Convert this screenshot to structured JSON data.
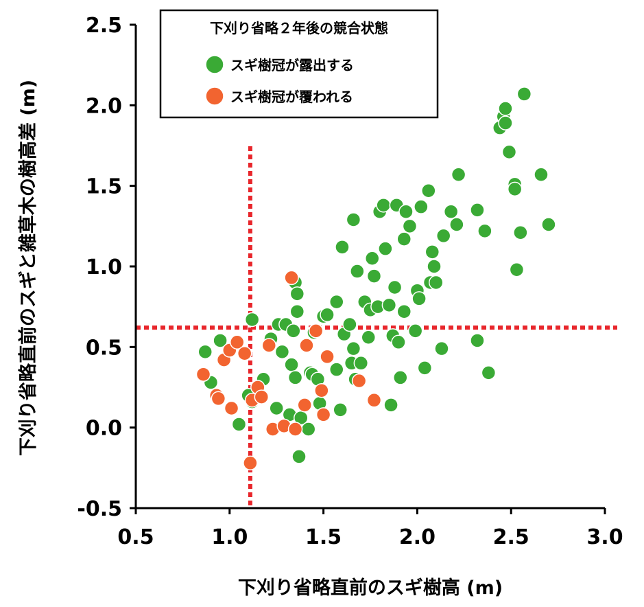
{
  "chart_data": {
    "type": "scatter",
    "xlabel": "下刈り省略直前のスギ樹高 (m)",
    "ylabel": "下刈り省略直前のスギと雑草木の樹高差 (m)",
    "xlim": [
      0.5,
      3.0
    ],
    "ylim": [
      -0.5,
      2.5
    ],
    "xticks": [
      "0.5",
      "1.0",
      "1.5",
      "2.0",
      "2.5",
      "3.0"
    ],
    "yticks": [
      "-0.5",
      "0.0",
      "0.5",
      "1.0",
      "1.5",
      "2.0",
      "2.5"
    ],
    "legend": {
      "title": "下刈り省略２年後の競合状態",
      "placement": "top-left"
    },
    "reference_lines": {
      "x": 1.11,
      "y": 0.62,
      "color": "#e8262b",
      "style": "dotted"
    },
    "series": [
      {
        "name": "スギ樹冠が露出する",
        "color": "#3aaa35",
        "points": [
          [
            0.87,
            0.47
          ],
          [
            0.9,
            0.28
          ],
          [
            0.95,
            0.54
          ],
          [
            1.05,
            0.02
          ],
          [
            1.1,
            0.2
          ],
          [
            1.12,
            0.67
          ],
          [
            1.12,
            0.16
          ],
          [
            1.18,
            0.3
          ],
          [
            1.22,
            0.55
          ],
          [
            1.25,
            0.12
          ],
          [
            1.26,
            0.64
          ],
          [
            1.28,
            0.47
          ],
          [
            1.3,
            0.64
          ],
          [
            1.32,
            0.08
          ],
          [
            1.33,
            0.39
          ],
          [
            1.34,
            0.6
          ],
          [
            1.35,
            0.31
          ],
          [
            1.35,
            0.9
          ],
          [
            1.36,
            0.83
          ],
          [
            1.36,
            0.72
          ],
          [
            1.37,
            -0.18
          ],
          [
            1.38,
            0.06
          ],
          [
            1.42,
            -0.01
          ],
          [
            1.43,
            0.34
          ],
          [
            1.44,
            0.33
          ],
          [
            1.45,
            0.59
          ],
          [
            1.47,
            0.3
          ],
          [
            1.48,
            0.15
          ],
          [
            1.5,
            0.69
          ],
          [
            1.52,
            0.7
          ],
          [
            1.57,
            0.36
          ],
          [
            1.57,
            0.78
          ],
          [
            1.59,
            0.11
          ],
          [
            1.6,
            1.12
          ],
          [
            1.61,
            0.58
          ],
          [
            1.64,
            0.64
          ],
          [
            1.65,
            0.4
          ],
          [
            1.66,
            0.49
          ],
          [
            1.66,
            1.29
          ],
          [
            1.67,
            0.3
          ],
          [
            1.68,
            0.97
          ],
          [
            1.7,
            0.4
          ],
          [
            1.72,
            0.78
          ],
          [
            1.74,
            0.56
          ],
          [
            1.75,
            0.73
          ],
          [
            1.76,
            1.05
          ],
          [
            1.77,
            0.94
          ],
          [
            1.79,
            0.75
          ],
          [
            1.8,
            1.34
          ],
          [
            1.82,
            1.38
          ],
          [
            1.83,
            1.11
          ],
          [
            1.85,
            0.76
          ],
          [
            1.86,
            0.14
          ],
          [
            1.87,
            0.57
          ],
          [
            1.88,
            0.87
          ],
          [
            1.89,
            1.38
          ],
          [
            1.9,
            0.53
          ],
          [
            1.91,
            0.31
          ],
          [
            1.93,
            0.72
          ],
          [
            1.93,
            1.17
          ],
          [
            1.94,
            1.34
          ],
          [
            1.96,
            1.25
          ],
          [
            1.99,
            0.6
          ],
          [
            2.0,
            0.85
          ],
          [
            2.01,
            0.8
          ],
          [
            2.02,
            1.37
          ],
          [
            2.04,
            0.37
          ],
          [
            2.06,
            1.47
          ],
          [
            2.07,
            0.9
          ],
          [
            2.08,
            1.09
          ],
          [
            2.09,
            1.0
          ],
          [
            2.1,
            0.9
          ],
          [
            2.13,
            0.49
          ],
          [
            2.14,
            1.19
          ],
          [
            2.18,
            1.34
          ],
          [
            2.21,
            1.26
          ],
          [
            2.22,
            1.57
          ],
          [
            2.32,
            1.35
          ],
          [
            2.32,
            0.54
          ],
          [
            2.36,
            1.22
          ],
          [
            2.38,
            0.34
          ],
          [
            2.44,
            1.86
          ],
          [
            2.46,
            1.93
          ],
          [
            2.47,
            1.98
          ],
          [
            2.47,
            1.89
          ],
          [
            2.49,
            1.71
          ],
          [
            2.52,
            1.51
          ],
          [
            2.52,
            1.48
          ],
          [
            2.53,
            0.98
          ],
          [
            2.55,
            1.21
          ],
          [
            2.57,
            2.07
          ],
          [
            2.66,
            1.57
          ],
          [
            2.7,
            1.26
          ]
        ]
      },
      {
        "name": "スギ樹冠が覆われる",
        "color": "#f26430",
        "points": [
          [
            0.86,
            0.33
          ],
          [
            0.93,
            0.2
          ],
          [
            0.94,
            0.18
          ],
          [
            0.97,
            0.42
          ],
          [
            1.0,
            0.48
          ],
          [
            1.01,
            0.12
          ],
          [
            1.04,
            0.53
          ],
          [
            1.08,
            0.46
          ],
          [
            1.11,
            -0.22
          ],
          [
            1.12,
            0.17
          ],
          [
            1.15,
            0.25
          ],
          [
            1.17,
            0.19
          ],
          [
            1.21,
            0.51
          ],
          [
            1.23,
            -0.01
          ],
          [
            1.29,
            0.01
          ],
          [
            1.33,
            0.93
          ],
          [
            1.35,
            -0.01
          ],
          [
            1.4,
            0.14
          ],
          [
            1.41,
            0.51
          ],
          [
            1.46,
            0.6
          ],
          [
            1.49,
            0.23
          ],
          [
            1.5,
            0.08
          ],
          [
            1.52,
            0.44
          ],
          [
            1.69,
            0.29
          ],
          [
            1.77,
            0.17
          ]
        ]
      }
    ]
  }
}
